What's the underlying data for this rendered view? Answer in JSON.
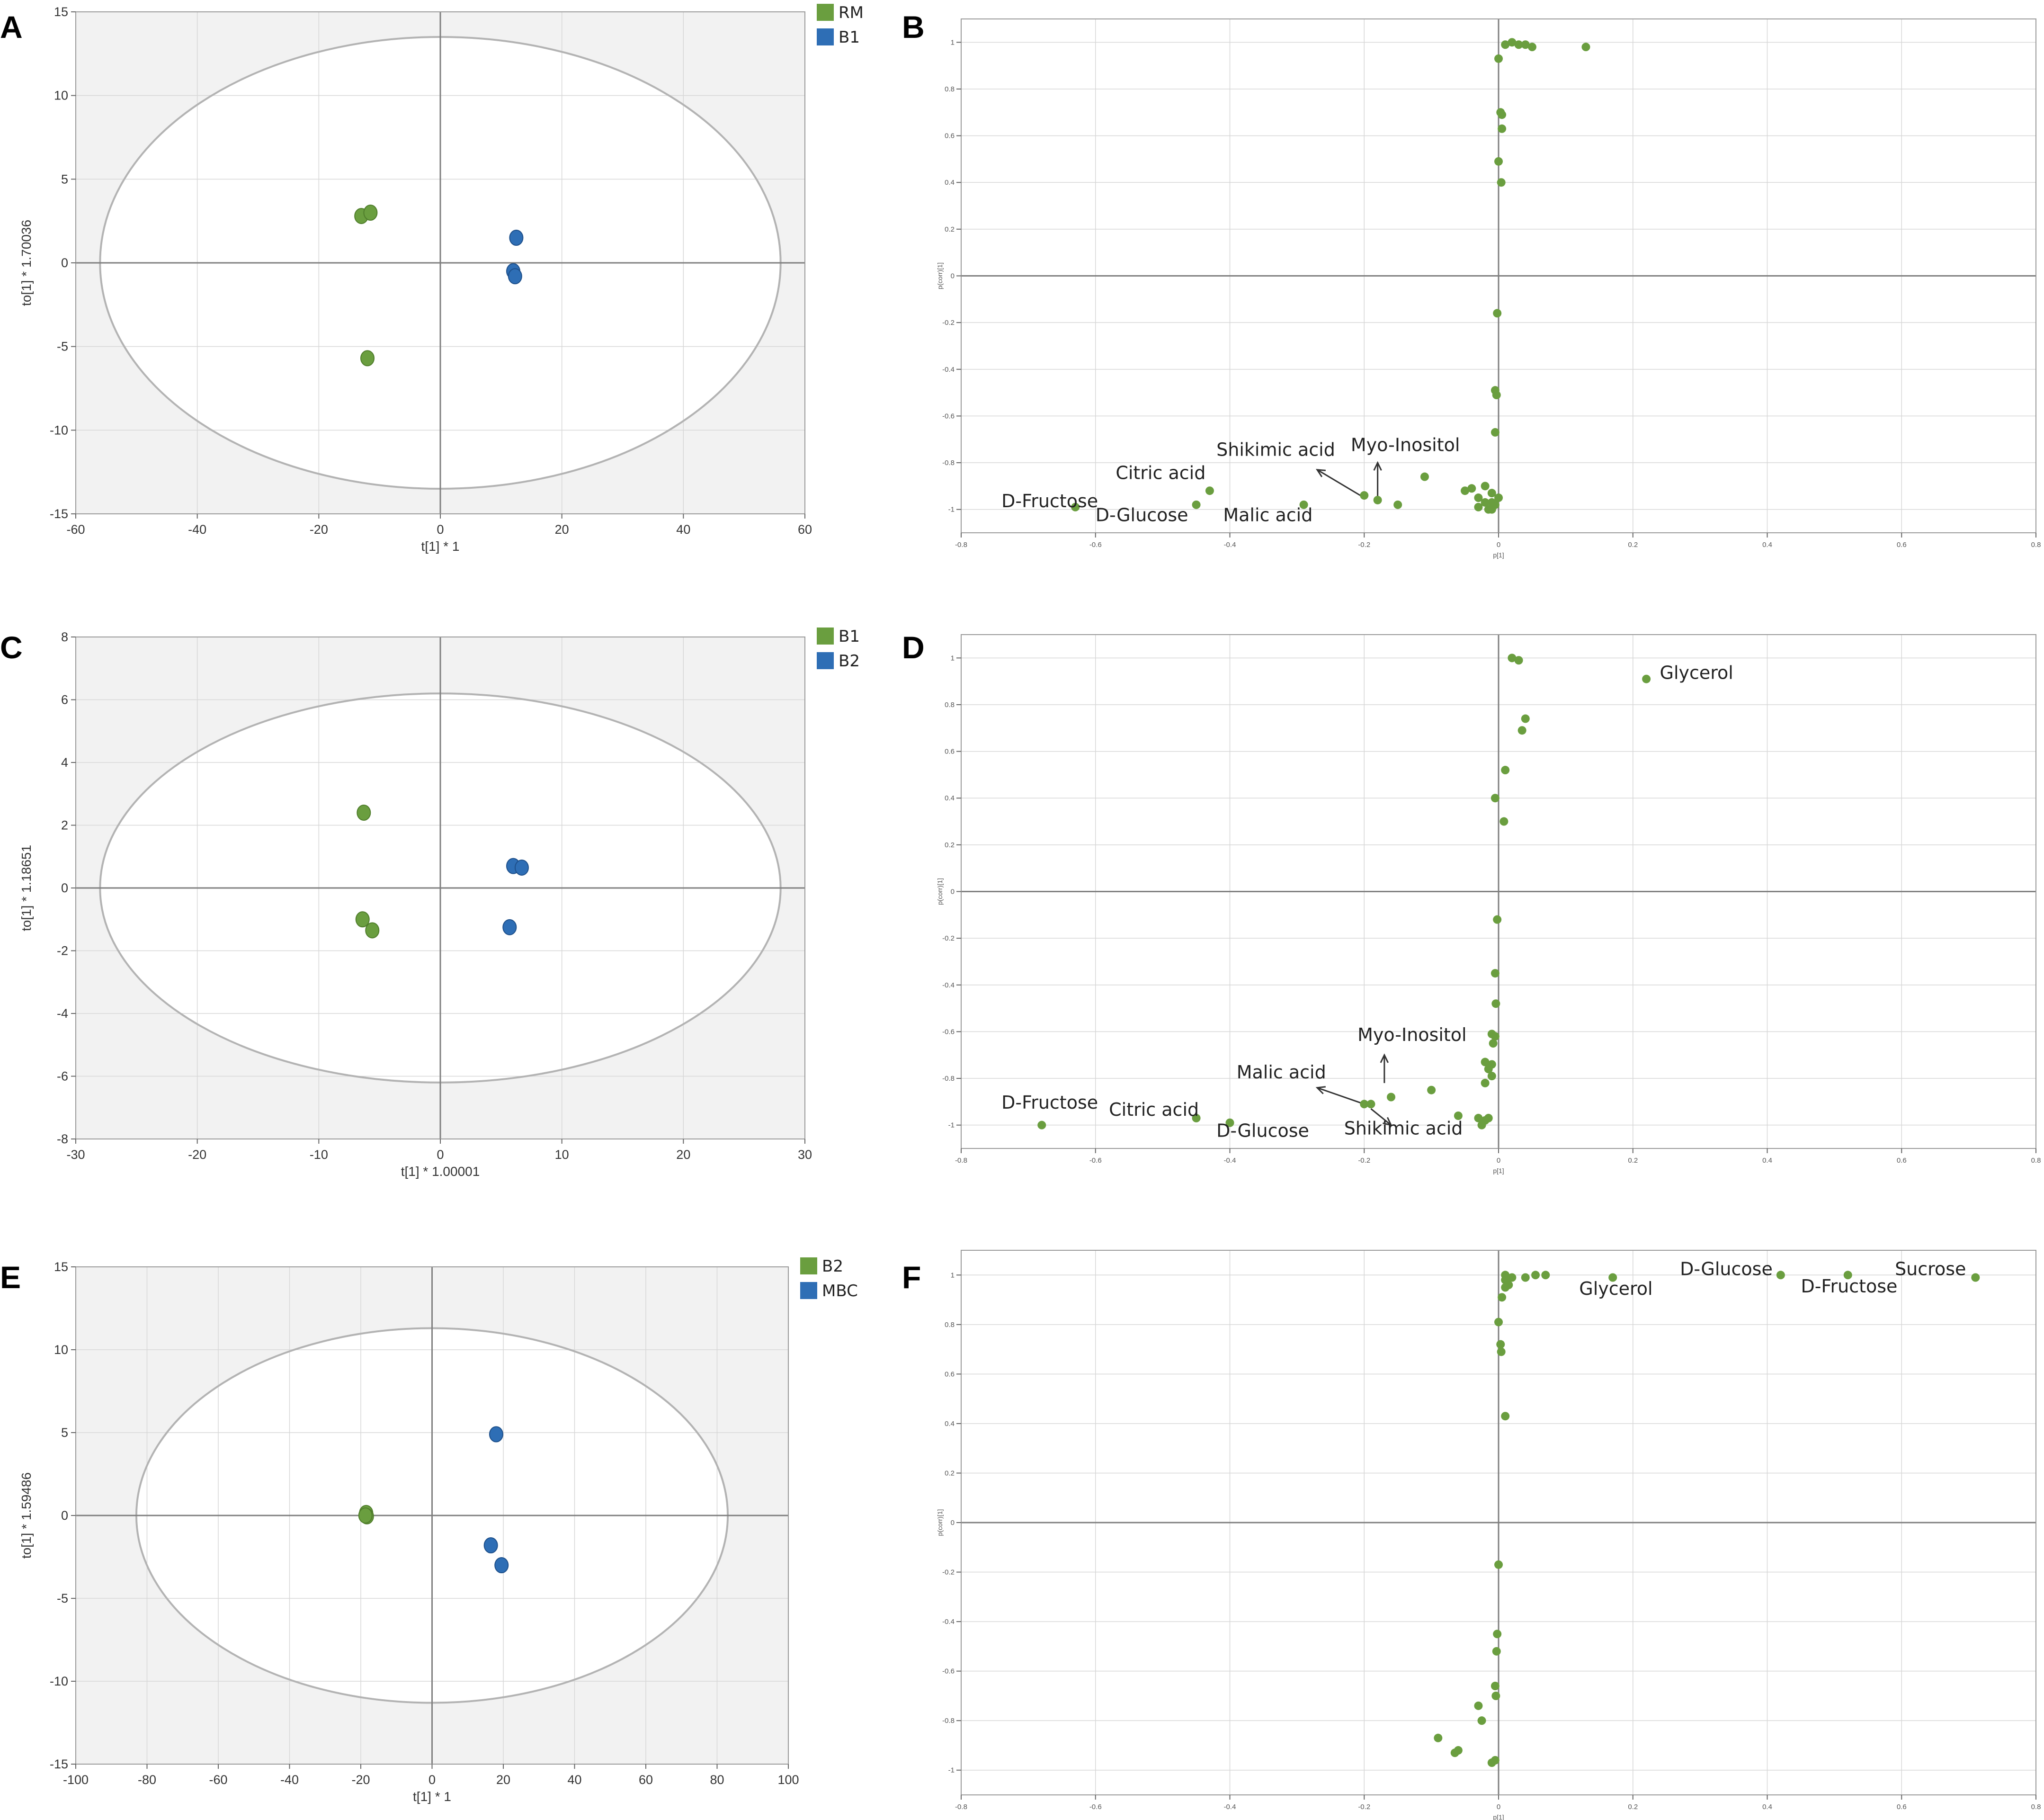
{
  "colors": {
    "green": "#6a9e3f",
    "blue": "#2e6eb5",
    "grid": "#d7d7d7",
    "zero_line": "#7f7f7f",
    "shade": "#f2f2f2",
    "ellipse": "#b3b3b3"
  },
  "chart_data": [
    {
      "panel": "A",
      "type": "scatter",
      "title": "",
      "xlabel": "t[1] * 1",
      "ylabel": "to[1] * 1.70036",
      "xlim": [
        -60,
        60
      ],
      "ylim": [
        -15,
        15
      ],
      "xticks": [
        -60,
        -40,
        -20,
        0,
        20,
        40,
        60
      ],
      "yticks": [
        -15,
        -10,
        -5,
        0,
        5,
        10,
        15
      ],
      "grid": true,
      "legend_position": "top-right",
      "ellipse": {
        "rx": 56,
        "ry": 13.5
      },
      "series": [
        {
          "name": "RM",
          "color": "green",
          "points": [
            [
              -13,
              2.8
            ],
            [
              -11.5,
              3.0
            ],
            [
              -12,
              -5.7
            ]
          ]
        },
        {
          "name": "B1",
          "color": "blue",
          "points": [
            [
              12.5,
              1.5
            ],
            [
              12,
              -0.5
            ],
            [
              12.3,
              -0.8
            ]
          ]
        }
      ]
    },
    {
      "panel": "B",
      "type": "scatter",
      "title": "",
      "xlabel": "p[1]",
      "ylabel": "p(corr)[1]",
      "xlim": [
        -0.8,
        0.8
      ],
      "ylim": [
        -1.1,
        1.1
      ],
      "xticks": [
        -0.8,
        -0.6,
        -0.4,
        -0.2,
        0,
        0.2,
        0.4,
        0.6,
        0.8
      ],
      "yticks": [
        -1,
        -0.8,
        -0.6,
        -0.4,
        -0.2,
        0,
        0.2,
        0.4,
        0.6,
        0.8,
        1
      ],
      "grid": true,
      "series": [
        {
          "color": "green",
          "points": [
            [
              0.01,
              0.99
            ],
            [
              0.02,
              1.0
            ],
            [
              0.03,
              0.99
            ],
            [
              0.04,
              0.99
            ],
            [
              0.05,
              0.98
            ],
            [
              0.13,
              0.98
            ],
            [
              0.0,
              0.93
            ],
            [
              0.003,
              0.7
            ],
            [
              0.005,
              0.69
            ],
            [
              0.005,
              0.63
            ],
            [
              0.0,
              0.49
            ],
            [
              0.004,
              0.4
            ],
            [
              -0.002,
              -0.16
            ],
            [
              -0.005,
              -0.49
            ],
            [
              -0.003,
              -0.51
            ],
            [
              -0.005,
              -0.67
            ],
            [
              -0.63,
              -0.99
            ],
            [
              -0.43,
              -0.92
            ],
            [
              -0.45,
              -0.98
            ],
            [
              -0.29,
              -0.98
            ],
            [
              -0.2,
              -0.94
            ],
            [
              -0.18,
              -0.96
            ],
            [
              -0.15,
              -0.98
            ],
            [
              -0.11,
              -0.86
            ],
            [
              -0.05,
              -0.92
            ],
            [
              -0.04,
              -0.91
            ],
            [
              -0.03,
              -0.95
            ],
            [
              -0.02,
              -0.9
            ],
            [
              -0.01,
              -0.93
            ],
            [
              -0.01,
              -0.97
            ],
            [
              -0.02,
              -0.97
            ],
            [
              -0.015,
              -1.0
            ],
            [
              -0.005,
              -0.98
            ],
            [
              -0.03,
              -0.99
            ],
            [
              -0.01,
              -1.0
            ],
            [
              0.0,
              -0.95
            ]
          ]
        }
      ],
      "annotations": [
        {
          "text": "D-Fructose",
          "x": -0.74,
          "y": -0.99
        },
        {
          "text": "Citric acid",
          "x": -0.57,
          "y": -0.87
        },
        {
          "text": "D-Glucose",
          "x": -0.6,
          "y": -1.05
        },
        {
          "text": "Malic acid",
          "x": -0.41,
          "y": -1.05
        },
        {
          "text": "Shikimic acid",
          "x": -0.42,
          "y": -0.77
        },
        {
          "text": "Myo-Inositol",
          "x": -0.22,
          "y": -0.75
        }
      ],
      "arrows": [
        {
          "from": [
            -0.2,
            -0.95
          ],
          "to": [
            -0.27,
            -0.83
          ]
        },
        {
          "from": [
            -0.18,
            -0.95
          ],
          "to": [
            -0.18,
            -0.8
          ]
        }
      ]
    },
    {
      "panel": "C",
      "type": "scatter",
      "title": "",
      "xlabel": "t[1] * 1.00001",
      "ylabel": "to[1] * 1.18651",
      "xlim": [
        -30,
        30
      ],
      "ylim": [
        -8,
        8
      ],
      "xticks": [
        -30,
        -20,
        -10,
        0,
        10,
        20,
        30
      ],
      "yticks": [
        -8,
        -6,
        -4,
        -2,
        0,
        2,
        4,
        6,
        8
      ],
      "grid": true,
      "legend_position": "top-right",
      "ellipse": {
        "rx": 28,
        "ry": 6.2
      },
      "series": [
        {
          "name": "B1",
          "color": "green",
          "points": [
            [
              -6.3,
              2.4
            ],
            [
              -6.4,
              -1.0
            ],
            [
              -5.6,
              -1.35
            ]
          ]
        },
        {
          "name": "B2",
          "color": "blue",
          "points": [
            [
              6.0,
              0.7
            ],
            [
              6.7,
              0.65
            ],
            [
              5.7,
              -1.25
            ]
          ]
        }
      ]
    },
    {
      "panel": "D",
      "type": "scatter",
      "title": "",
      "xlabel": "p[1]",
      "ylabel": "p(corr)[1]",
      "xlim": [
        -0.8,
        0.8
      ],
      "ylim": [
        -1.1,
        1.1
      ],
      "xticks": [
        -0.8,
        -0.6,
        -0.4,
        -0.2,
        0,
        0.2,
        0.4,
        0.6,
        0.8
      ],
      "yticks": [
        -1,
        -0.8,
        -0.6,
        -0.4,
        -0.2,
        0,
        0.2,
        0.4,
        0.6,
        0.8,
        1
      ],
      "grid": true,
      "series": [
        {
          "color": "green",
          "points": [
            [
              0.02,
              1.0
            ],
            [
              0.03,
              0.99
            ],
            [
              0.22,
              0.91
            ],
            [
              0.04,
              0.74
            ],
            [
              0.035,
              0.69
            ],
            [
              0.01,
              0.52
            ],
            [
              -0.005,
              0.4
            ],
            [
              0.008,
              0.3
            ],
            [
              -0.002,
              -0.12
            ],
            [
              -0.005,
              -0.35
            ],
            [
              -0.004,
              -0.48
            ],
            [
              -0.01,
              -0.61
            ],
            [
              -0.005,
              -0.62
            ],
            [
              -0.008,
              -0.65
            ],
            [
              -0.02,
              -0.73
            ],
            [
              -0.01,
              -0.74
            ],
            [
              -0.015,
              -0.76
            ],
            [
              -0.01,
              -0.79
            ],
            [
              -0.02,
              -0.82
            ],
            [
              -0.68,
              -1.0
            ],
            [
              -0.45,
              -0.97
            ],
            [
              -0.4,
              -0.99
            ],
            [
              -0.2,
              -0.91
            ],
            [
              -0.19,
              -0.91
            ],
            [
              -0.16,
              -0.88
            ],
            [
              -0.1,
              -0.85
            ],
            [
              -0.06,
              -0.96
            ],
            [
              -0.03,
              -0.97
            ],
            [
              -0.02,
              -0.98
            ],
            [
              -0.025,
              -1.0
            ],
            [
              -0.015,
              -0.97
            ]
          ]
        }
      ],
      "annotations": [
        {
          "text": "D-Fructose",
          "x": -0.74,
          "y": -0.93
        },
        {
          "text": "Citric acid",
          "x": -0.58,
          "y": -0.96
        },
        {
          "text": "D-Glucose",
          "x": -0.42,
          "y": -1.05
        },
        {
          "text": "Malic acid",
          "x": -0.39,
          "y": -0.8
        },
        {
          "text": "Myo-Inositol",
          "x": -0.21,
          "y": -0.64
        },
        {
          "text": "Shikimic acid",
          "x": -0.23,
          "y": -1.04
        },
        {
          "text": "Glycerol",
          "x": 0.24,
          "y": 0.91
        }
      ],
      "arrows": [
        {
          "from": [
            -0.2,
            -0.91
          ],
          "to": [
            -0.27,
            -0.84
          ]
        },
        {
          "from": [
            -0.17,
            -0.82
          ],
          "to": [
            -0.17,
            -0.7
          ]
        },
        {
          "from": [
            -0.19,
            -0.93
          ],
          "to": [
            -0.16,
            -1.0
          ]
        }
      ]
    },
    {
      "panel": "E",
      "type": "scatter",
      "title": "",
      "xlabel": "t[1] * 1",
      "ylabel": "to[1] * 1.59486",
      "xlim": [
        -100,
        100
      ],
      "ylim": [
        -15,
        15
      ],
      "xticks": [
        -100,
        -80,
        -60,
        -40,
        -20,
        0,
        20,
        40,
        60,
        80,
        100
      ],
      "yticks": [
        -15,
        -10,
        -5,
        0,
        5,
        10,
        15
      ],
      "grid": true,
      "legend_position": "top-right",
      "ellipse": {
        "rx": 83,
        "ry": 11.3
      },
      "series": [
        {
          "name": "B2",
          "color": "green",
          "points": [
            [
              -18.5,
              0.15
            ],
            [
              -18.3,
              -0.05
            ],
            [
              -18.7,
              0.0
            ]
          ]
        },
        {
          "name": "MBC",
          "color": "blue",
          "points": [
            [
              18,
              4.9
            ],
            [
              16.5,
              -1.8
            ],
            [
              19.5,
              -3.0
            ]
          ]
        }
      ]
    },
    {
      "panel": "F",
      "type": "scatter",
      "title": "",
      "xlabel": "p[1]",
      "ylabel": "p(corr)[1]",
      "xlim": [
        -0.8,
        0.8
      ],
      "ylim": [
        -1.1,
        1.1
      ],
      "xticks": [
        -0.8,
        -0.6,
        -0.4,
        -0.2,
        0,
        0.2,
        0.4,
        0.6,
        0.8
      ],
      "yticks": [
        -1,
        -0.8,
        -0.6,
        -0.4,
        -0.2,
        0,
        0.2,
        0.4,
        0.6,
        0.8,
        1
      ],
      "grid": true,
      "series": [
        {
          "color": "green",
          "points": [
            [
              0.01,
              1.0
            ],
            [
              0.02,
              0.99
            ],
            [
              0.01,
              0.98
            ],
            [
              0.015,
              0.96
            ],
            [
              0.01,
              0.95
            ],
            [
              0.04,
              0.99
            ],
            [
              0.055,
              1.0
            ],
            [
              0.07,
              1.0
            ],
            [
              0.17,
              0.99
            ],
            [
              0.42,
              1.0
            ],
            [
              0.52,
              1.0
            ],
            [
              0.71,
              0.99
            ],
            [
              0.005,
              0.91
            ],
            [
              0.0,
              0.81
            ],
            [
              0.003,
              0.72
            ],
            [
              0.004,
              0.69
            ],
            [
              0.01,
              0.43
            ],
            [
              0.0,
              -0.17
            ],
            [
              -0.002,
              -0.45
            ],
            [
              -0.003,
              -0.52
            ],
            [
              -0.005,
              -0.66
            ],
            [
              -0.004,
              -0.7
            ],
            [
              -0.03,
              -0.74
            ],
            [
              -0.025,
              -0.8
            ],
            [
              -0.09,
              -0.87
            ],
            [
              -0.06,
              -0.92
            ],
            [
              -0.065,
              -0.93
            ],
            [
              -0.005,
              -0.96
            ],
            [
              -0.01,
              -0.97
            ]
          ]
        }
      ],
      "annotations": [
        {
          "text": "D-Glucose",
          "x": 0.27,
          "y": 1.0
        },
        {
          "text": "Sucrose",
          "x": 0.59,
          "y": 1.0
        },
        {
          "text": "Glycerol",
          "x": 0.12,
          "y": 0.92
        },
        {
          "text": "D-Fructose",
          "x": 0.45,
          "y": 0.93
        }
      ],
      "arrows": []
    }
  ]
}
